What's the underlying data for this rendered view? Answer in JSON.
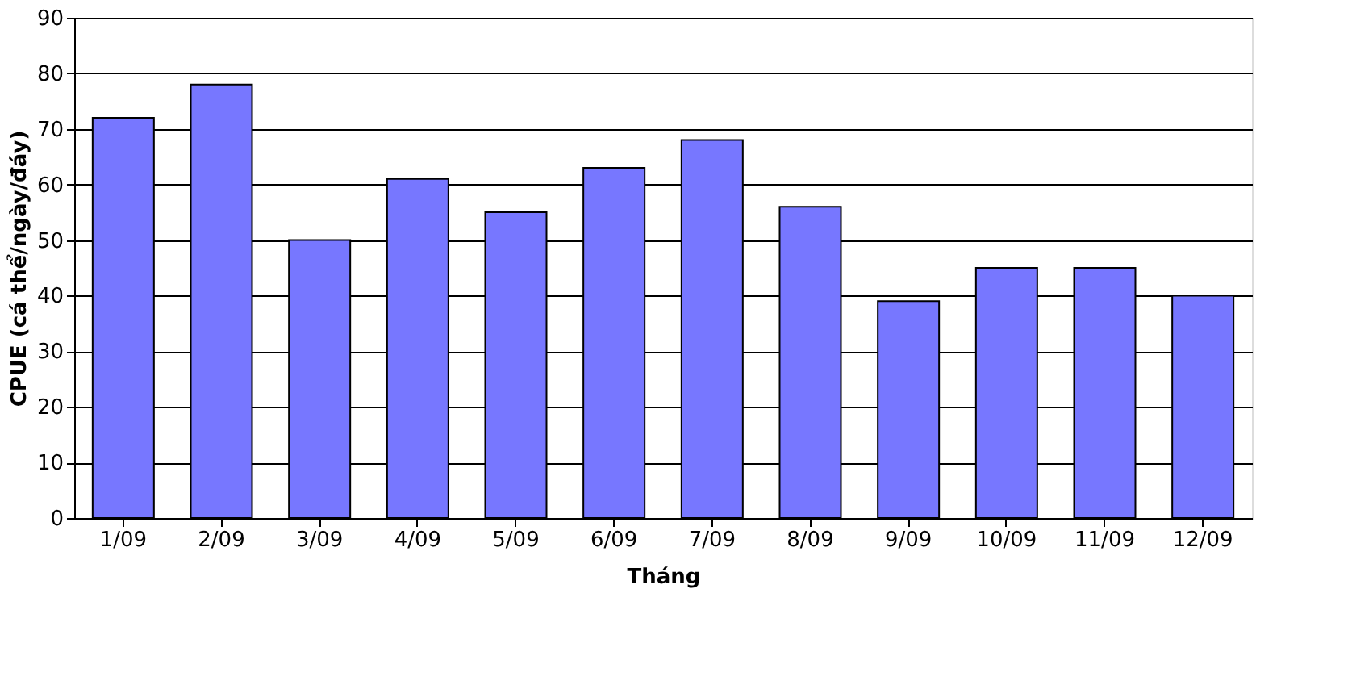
{
  "chart_data": {
    "type": "bar",
    "xlabel": "Tháng",
    "ylabel": "CPUE (cá thể/ngày/đáy)",
    "categories": [
      "1/09",
      "2/09",
      "3/09",
      "4/09",
      "5/09",
      "6/09",
      "7/09",
      "8/09",
      "9/09",
      "10/09",
      "11/09",
      "12/09"
    ],
    "values": [
      72,
      78,
      50,
      61,
      55,
      63,
      68,
      56,
      39,
      45,
      45,
      40
    ],
    "color": "#7777ff",
    "ylim": [
      0,
      90
    ],
    "yticks": [
      0,
      10,
      20,
      30,
      40,
      50,
      60,
      70,
      80,
      90
    ],
    "grid": "y"
  }
}
